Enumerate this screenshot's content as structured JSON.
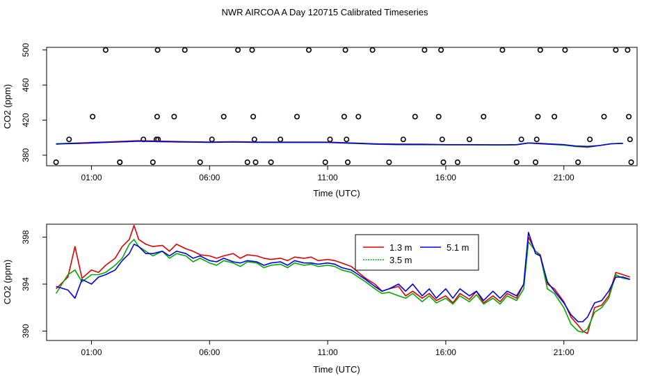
{
  "title": "NWR AIRCOA A  Day 120715  Calibrated Timeseries",
  "chart_data": [
    {
      "type": "line",
      "name": "top-panel",
      "title": "",
      "xlabel": "Time (UTC)",
      "ylabel": "CO2 (ppm)",
      "xlim": [
        -0.9,
        24.1
      ],
      "ylim": [
        368,
        503
      ],
      "xticks": [
        1,
        6,
        11,
        16,
        21
      ],
      "xtick_labels": [
        "01:00",
        "06:00",
        "11:00",
        "16:00",
        "21:00"
      ],
      "yticks": [
        380,
        420,
        460,
        500
      ],
      "ytick_labels": [
        "380",
        "420",
        "460",
        "500"
      ],
      "series": [
        {
          "name": "1.3 m",
          "color": "#dd0000",
          "x": [
            -0.5,
            0,
            0.5,
            1,
            1.5,
            2,
            2.5,
            3,
            4,
            5,
            6,
            7,
            8,
            9,
            10,
            11,
            12,
            13,
            14,
            15,
            16,
            17,
            18,
            18.5,
            19,
            19.5,
            20,
            21,
            21.5,
            22,
            22.5,
            23,
            23.5
          ],
          "y": [
            392.5,
            393.5,
            394,
            394.5,
            395,
            395.5,
            396,
            396.5,
            396,
            395.5,
            395,
            395.5,
            395,
            395,
            395,
            395,
            394,
            393,
            392.5,
            392.5,
            392,
            392,
            391.8,
            391.8,
            392,
            394,
            393.5,
            392,
            390,
            389,
            391,
            393,
            393.5
          ]
        },
        {
          "name": "3.5 m",
          "color": "#00aa00",
          "x": [
            -0.5,
            0,
            0.5,
            1,
            1.5,
            2,
            2.5,
            3,
            4,
            5,
            6,
            7,
            8,
            9,
            10,
            11,
            12,
            13,
            14,
            15,
            16,
            17,
            18,
            18.5,
            19,
            19.5,
            20,
            21,
            21.5,
            22,
            22.5,
            23,
            23.5
          ],
          "y": [
            392.5,
            393,
            393.5,
            394,
            394.5,
            395,
            395.5,
            396,
            395.5,
            395,
            394.5,
            395,
            394.5,
            394.5,
            394.5,
            394.5,
            393.5,
            392.5,
            392,
            392,
            391.8,
            391.8,
            391.6,
            391.6,
            392,
            394,
            393,
            391.5,
            390,
            389.5,
            391,
            393,
            393.5
          ]
        },
        {
          "name": "5.1 m",
          "color": "#0000dd",
          "x": [
            -0.5,
            0,
            0.5,
            1,
            1.5,
            2,
            2.5,
            3,
            4,
            5,
            6,
            7,
            8,
            9,
            10,
            11,
            12,
            13,
            14,
            15,
            16,
            17,
            18,
            18.5,
            19,
            19.5,
            20,
            21,
            21.5,
            22,
            22.5,
            23,
            23.5
          ],
          "y": [
            393,
            393.3,
            393.6,
            394,
            394.5,
            395,
            395.5,
            396,
            395.5,
            395,
            394.8,
            395,
            394.8,
            394.6,
            394.6,
            394.6,
            393.8,
            392.8,
            392.4,
            392.3,
            392,
            392,
            391.8,
            391.8,
            392,
            394,
            393.2,
            392,
            390.5,
            390,
            391,
            393,
            393.5
          ]
        }
      ],
      "points": {
        "name": "circles",
        "x": [
          -0.5,
          0.05,
          1.05,
          1.6,
          2.2,
          2.2,
          3.2,
          3.6,
          3.75,
          3.78,
          3.8,
          3.82,
          4.5,
          4.95,
          5.6,
          6.1,
          6.6,
          7.2,
          7.6,
          7.8,
          7.85,
          7.9,
          7.95,
          8.6,
          9.0,
          9.7,
          10.2,
          10.9,
          11.1,
          11.7,
          11.75,
          11.8,
          11.85,
          12.3,
          12.9,
          13.6,
          14.2,
          14.7,
          15.1,
          15.7,
          15.8,
          15.85,
          15.9,
          16.5,
          17.0,
          17.6,
          18.4,
          19.0,
          19.2,
          19.8,
          19.85,
          19.9,
          20.0,
          20.6,
          21.05,
          21.6,
          22.1,
          22.7,
          23.2,
          23.7,
          23.75,
          23.8,
          23.85
        ],
        "y": [
          372,
          398,
          424,
          500,
          372,
          372,
          398,
          372,
          398,
          424,
          500,
          398,
          424,
          500,
          372,
          398,
          424,
          500,
          372,
          500,
          424,
          398,
          372,
          372,
          398,
          424,
          500,
          372,
          398,
          424,
          500,
          398,
          372,
          424,
          500,
          372,
          398,
          424,
          500,
          424,
          500,
          398,
          372,
          372,
          398,
          424,
          500,
          372,
          398,
          372,
          398,
          424,
          500,
          424,
          500,
          372,
          398,
          424,
          500,
          500,
          424,
          398,
          372
        ]
      }
    },
    {
      "type": "line",
      "name": "bottom-panel",
      "title": "",
      "xlabel": "Time (UTC)",
      "ylabel": "CO2 (ppm)",
      "xlim": [
        -0.9,
        24.1
      ],
      "ylim": [
        389.2,
        399.1
      ],
      "xticks": [
        1,
        6,
        11,
        16,
        21
      ],
      "xtick_labels": [
        "01:00",
        "06:00",
        "11:00",
        "16:00",
        "21:00"
      ],
      "yticks": [
        390,
        394,
        398
      ],
      "ytick_labels": [
        "390",
        "394",
        "398"
      ],
      "legend": {
        "position": "top-center",
        "entries": [
          "1.3 m",
          "3.5 m",
          "5.1 m"
        ]
      },
      "series": [
        {
          "name": "1.3 m",
          "color": "#dd0000",
          "x": [
            -0.5,
            0,
            0.3,
            0.6,
            1,
            1.3,
            1.6,
            2,
            2.3,
            2.6,
            2.8,
            3,
            3.3,
            3.6,
            4,
            4.3,
            4.6,
            5,
            5.3,
            5.6,
            6,
            6.3,
            6.6,
            7,
            7.3,
            7.6,
            8,
            8.3,
            8.6,
            9,
            9.3,
            9.6,
            10,
            10.3,
            10.6,
            11,
            11.3,
            11.6,
            12,
            12.3,
            12.6,
            13,
            13.3,
            13.6,
            14,
            14.3,
            14.6,
            15,
            15.3,
            15.6,
            16,
            16.3,
            16.6,
            17,
            17.3,
            17.6,
            18,
            18.3,
            18.6,
            19,
            19.3,
            19.5,
            19.8,
            20,
            20.3,
            20.6,
            21,
            21.3,
            21.6,
            21.8,
            22,
            22.3,
            22.6,
            22.9,
            23.2,
            23.5,
            23.8
          ],
          "y": [
            393.6,
            394.6,
            397.2,
            394.5,
            395.2,
            395.0,
            395.6,
            396.2,
            397.2,
            397.8,
            399.0,
            397.8,
            397.4,
            397.2,
            397.3,
            396.8,
            397.4,
            397.0,
            396.8,
            396.5,
            396.4,
            396.2,
            396.4,
            396.6,
            396.2,
            396.5,
            396.4,
            396.2,
            396.1,
            396.2,
            396.0,
            396.3,
            396.2,
            396.3,
            396.0,
            396.1,
            396.0,
            395.8,
            395.5,
            395.0,
            394.5,
            394.0,
            393.4,
            393.6,
            393.8,
            393.0,
            393.4,
            392.8,
            393.2,
            392.6,
            393.0,
            392.4,
            393.2,
            392.7,
            393.4,
            392.4,
            393.0,
            392.5,
            393.2,
            392.8,
            394.0,
            398.0,
            396.8,
            396.5,
            394.0,
            393.6,
            392.5,
            391.2,
            390.5,
            390.0,
            389.8,
            392.0,
            392.2,
            393.0,
            395.0,
            394.8,
            394.6
          ]
        },
        {
          "name": "3.5 m",
          "color": "#00aa00",
          "x": [
            -0.5,
            0,
            0.3,
            0.6,
            1,
            1.3,
            1.6,
            2,
            2.3,
            2.6,
            2.8,
            3,
            3.3,
            3.6,
            4,
            4.3,
            4.6,
            5,
            5.3,
            5.6,
            6,
            6.3,
            6.6,
            7,
            7.3,
            7.6,
            8,
            8.3,
            8.6,
            9,
            9.3,
            9.6,
            10,
            10.3,
            10.6,
            11,
            11.3,
            11.6,
            12,
            12.3,
            12.6,
            13,
            13.3,
            13.6,
            14,
            14.3,
            14.6,
            15,
            15.3,
            15.6,
            16,
            16.3,
            16.6,
            17,
            17.3,
            17.6,
            18,
            18.3,
            18.6,
            19,
            19.3,
            19.5,
            19.8,
            20,
            20.3,
            20.6,
            21,
            21.3,
            21.6,
            21.8,
            22,
            22.3,
            22.6,
            22.9,
            23.2,
            23.5,
            23.8
          ],
          "y": [
            393.2,
            394.8,
            395.2,
            394.2,
            394.8,
            394.8,
            395.0,
            395.6,
            396.2,
            397.4,
            397.8,
            397.2,
            396.8,
            396.4,
            396.8,
            396.2,
            396.6,
            396.4,
            395.9,
            396.2,
            395.8,
            395.6,
            396.0,
            395.8,
            395.5,
            395.9,
            395.8,
            395.4,
            395.6,
            395.7,
            395.4,
            395.8,
            395.6,
            395.7,
            395.5,
            395.6,
            395.5,
            395.2,
            395.0,
            394.6,
            394.2,
            393.6,
            393.2,
            393.3,
            393.0,
            392.8,
            393.2,
            392.5,
            393.0,
            392.4,
            392.8,
            392.3,
            393.0,
            392.5,
            393.1,
            392.3,
            392.8,
            392.3,
            393.0,
            392.6,
            393.6,
            397.6,
            396.8,
            396.4,
            393.6,
            393.2,
            392.0,
            390.6,
            390.0,
            389.9,
            390.2,
            391.6,
            392.0,
            392.8,
            394.8,
            394.5,
            394.4
          ]
        },
        {
          "name": "5.1 m",
          "color": "#0000dd",
          "x": [
            -0.5,
            0,
            0.3,
            0.6,
            1,
            1.3,
            1.6,
            2,
            2.3,
            2.6,
            2.8,
            3,
            3.3,
            3.6,
            4,
            4.3,
            4.6,
            5,
            5.3,
            5.6,
            6,
            6.3,
            6.6,
            7,
            7.3,
            7.6,
            8,
            8.3,
            8.6,
            9,
            9.3,
            9.6,
            10,
            10.3,
            10.6,
            11,
            11.3,
            11.6,
            12,
            12.3,
            12.6,
            13,
            13.3,
            13.6,
            14,
            14.3,
            14.6,
            15,
            15.3,
            15.6,
            16,
            16.3,
            16.6,
            17,
            17.3,
            17.6,
            18,
            18.3,
            18.6,
            19,
            19.3,
            19.5,
            19.8,
            20,
            20.3,
            20.6,
            21,
            21.3,
            21.6,
            21.8,
            22,
            22.3,
            22.6,
            22.9,
            23.2,
            23.5,
            23.8
          ],
          "y": [
            393.8,
            393.5,
            392.8,
            394.4,
            394.0,
            394.6,
            394.8,
            395.2,
            396.0,
            396.6,
            397.4,
            397.2,
            396.6,
            396.6,
            396.8,
            396.4,
            396.8,
            396.6,
            396.2,
            396.4,
            396.0,
            395.9,
            396.2,
            395.9,
            395.8,
            396.0,
            395.9,
            395.6,
            395.8,
            395.9,
            395.6,
            396.0,
            395.8,
            395.8,
            395.7,
            395.8,
            395.7,
            395.4,
            395.2,
            394.8,
            394.4,
            393.8,
            393.4,
            393.6,
            394.0,
            393.4,
            394.0,
            393.0,
            393.6,
            392.8,
            393.6,
            392.8,
            393.6,
            393.0,
            393.4,
            392.6,
            393.4,
            392.8,
            393.4,
            393.0,
            394.0,
            398.4,
            396.6,
            396.4,
            394.2,
            393.4,
            392.4,
            391.4,
            390.8,
            390.8,
            391.2,
            392.4,
            392.6,
            393.4,
            394.6,
            394.6,
            394.4
          ]
        }
      ]
    }
  ]
}
